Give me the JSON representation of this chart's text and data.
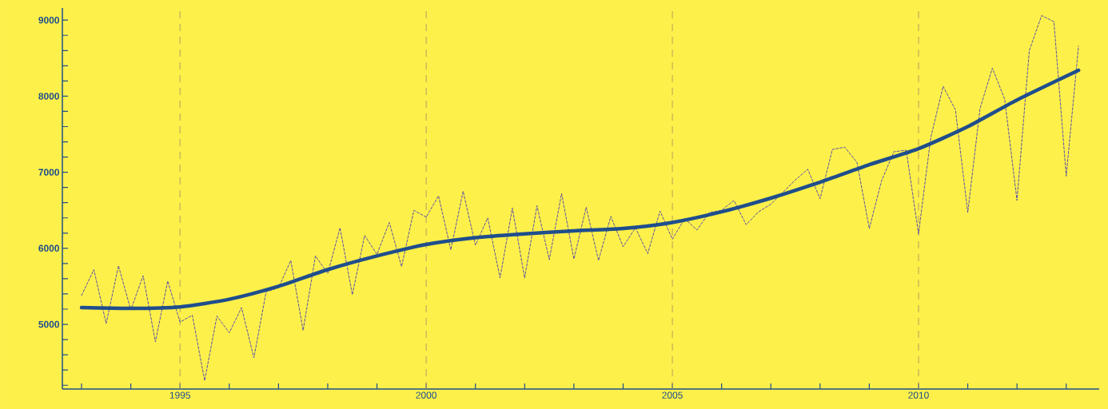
{
  "chart_data": {
    "type": "line",
    "xlim": [
      1992.61,
      2013.67
    ],
    "ylim": [
      4150,
      9160
    ],
    "xticks": [
      {
        "value": 1993,
        "label": null
      },
      {
        "value": 1994,
        "label": null
      },
      1995,
      {
        "value": 1996,
        "label": null
      },
      {
        "value": 1997,
        "label": null
      },
      {
        "value": 1998,
        "label": null
      },
      {
        "value": 1999,
        "label": null
      },
      2000,
      {
        "value": 2001,
        "label": null
      },
      {
        "value": 2002,
        "label": null
      },
      {
        "value": 2003,
        "label": null
      },
      {
        "value": 2004,
        "label": null
      },
      2005,
      {
        "value": 2006,
        "label": null
      },
      {
        "value": 2007,
        "label": null
      },
      {
        "value": 2008,
        "label": null
      },
      {
        "value": 2009,
        "label": null
      },
      2010,
      {
        "value": 2011,
        "label": null
      },
      {
        "value": 2012,
        "label": null
      },
      {
        "value": 2013,
        "label": null
      }
    ],
    "yticks": [
      {
        "value": 4200,
        "label": null
      },
      {
        "value": 4400,
        "label": null
      },
      {
        "value": 4600,
        "label": null
      },
      {
        "value": 4800,
        "label": null
      },
      5000,
      {
        "value": 5200,
        "label": null
      },
      {
        "value": 5400,
        "label": null
      },
      {
        "value": 5600,
        "label": null
      },
      {
        "value": 5800,
        "label": null
      },
      6000,
      {
        "value": 6200,
        "label": null
      },
      {
        "value": 6400,
        "label": null
      },
      {
        "value": 6600,
        "label": null
      },
      {
        "value": 6800,
        "label": null
      },
      7000,
      {
        "value": 7200,
        "label": null
      },
      {
        "value": 7400,
        "label": null
      },
      {
        "value": 7600,
        "label": null
      },
      {
        "value": 7800,
        "label": null
      },
      8000,
      {
        "value": 8200,
        "label": null
      },
      {
        "value": 8400,
        "label": null
      },
      {
        "value": 8600,
        "label": null
      },
      {
        "value": 8800,
        "label": null
      },
      9000
    ],
    "ref_lines": [
      {
        "axis": "x",
        "value": 1995,
        "color": "#b0a060",
        "line_style": "dashed"
      },
      {
        "axis": "x",
        "value": 2000,
        "color": "#b0a060",
        "line_style": "dashed"
      },
      {
        "axis": "x",
        "value": 2005,
        "color": "#b0a060",
        "line_style": "dashed"
      },
      {
        "axis": "x",
        "value": 2010,
        "color": "#b0a060",
        "line_style": "dashed"
      }
    ],
    "marker": "none",
    "series": [
      {
        "color": "#4a3fb0",
        "line_style": "dashed",
        "x": [
          1993,
          1993.25,
          1993.5,
          1993.75,
          1994,
          1994.25,
          1994.5,
          1994.75,
          1995,
          1995.25,
          1995.5,
          1995.75,
          1996,
          1996.25,
          1996.5,
          1996.75,
          1997,
          1997.25,
          1997.5,
          1997.75,
          1998,
          1998.25,
          1998.5,
          1998.75,
          1999,
          1999.25,
          1999.5,
          1999.75,
          2000,
          2000.25,
          2000.5,
          2000.75,
          2001,
          2001.25,
          2001.5,
          2001.75,
          2002,
          2002.25,
          2002.5,
          2002.75,
          2003,
          2003.25,
          2003.5,
          2003.75,
          2004,
          2004.25,
          2004.5,
          2004.75,
          2005,
          2005.25,
          2005.5,
          2005.75,
          2006,
          2006.25,
          2006.5,
          2006.75,
          2007,
          2007.25,
          2007.5,
          2007.75,
          2008,
          2008.25,
          2008.5,
          2008.75,
          2009,
          2009.25,
          2009.5,
          2009.75,
          2010,
          2010.25,
          2010.5,
          2010.75,
          2011,
          2011.25,
          2011.5,
          2011.75,
          2012,
          2012.25,
          2012.5,
          2012.75,
          2013,
          2013.25
        ],
        "values": [
          5380,
          5720,
          5010,
          5770,
          5190,
          5640,
          4770,
          5570,
          5030,
          5120,
          4260,
          5110,
          4890,
          5220,
          4560,
          5430,
          5480,
          5840,
          4920,
          5900,
          5670,
          6270,
          5390,
          6170,
          5920,
          6340,
          5760,
          6500,
          6410,
          6690,
          5980,
          6750,
          6040,
          6400,
          5610,
          6530,
          5610,
          6560,
          5850,
          6720,
          5860,
          6540,
          5840,
          6420,
          6020,
          6270,
          5930,
          6490,
          6120,
          6390,
          6240,
          6470,
          6500,
          6630,
          6310,
          6480,
          6580,
          6740,
          6900,
          7040,
          6650,
          7300,
          7330,
          7130,
          6260,
          6890,
          7270,
          7290,
          6190,
          7460,
          8130,
          7820,
          6470,
          7840,
          8370,
          7960,
          6630,
          8600,
          9060,
          8980,
          6950,
          8660
        ]
      },
      {
        "color": "#1f4e8c",
        "line_style": "solid",
        "x": [
          1993,
          1994,
          1995,
          1996,
          1997,
          1998,
          1999,
          2000,
          2001,
          2002,
          2003,
          2004,
          2005,
          2006,
          2007,
          2008,
          2009,
          2010,
          2011,
          2012,
          2013.25
        ],
        "values": [
          5220,
          5210,
          5230,
          5330,
          5500,
          5720,
          5900,
          6050,
          6140,
          6190,
          6230,
          6260,
          6340,
          6480,
          6660,
          6870,
          7100,
          7310,
          7600,
          7950,
          8340
        ]
      }
    ]
  }
}
